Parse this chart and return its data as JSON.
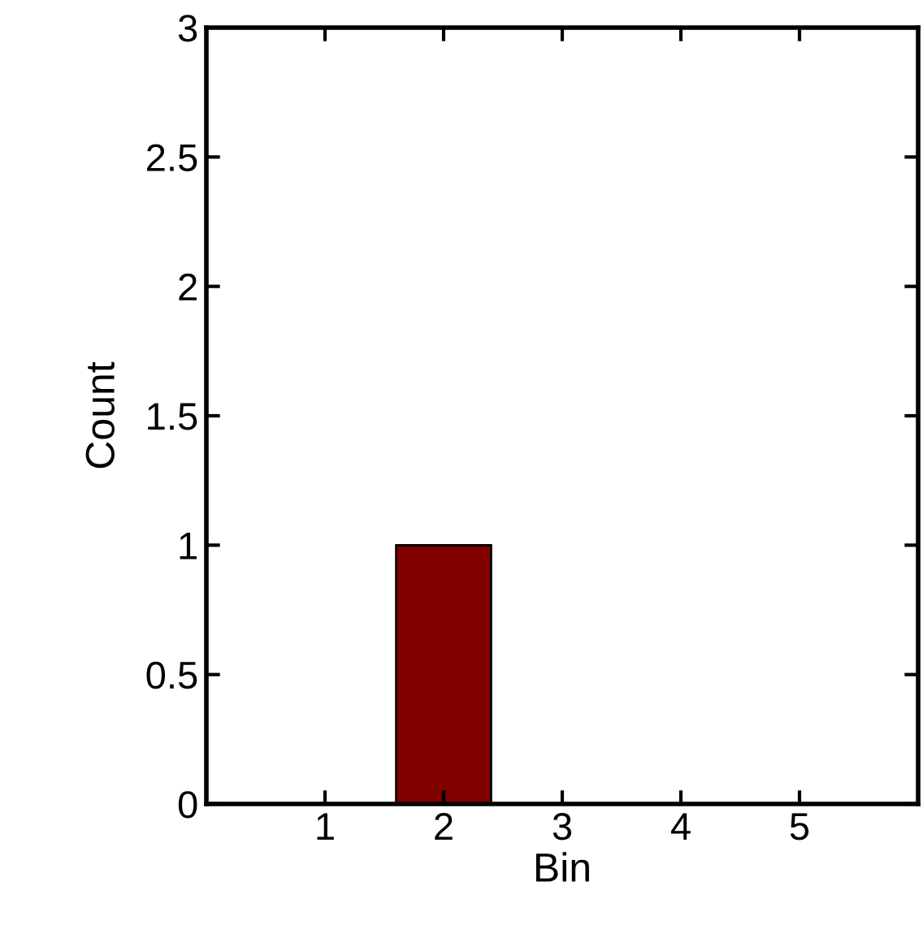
{
  "chart_data": {
    "type": "bar",
    "xlabel": "Bin",
    "ylabel": "Count",
    "x": [
      1,
      2,
      3,
      4,
      5
    ],
    "series": [
      {
        "color": "#800000",
        "values": [
          0,
          1,
          0,
          0,
          0
        ]
      }
    ],
    "xlim": [
      0,
      6
    ],
    "xticks": [
      1,
      2,
      3,
      4,
      5
    ],
    "ylim": [
      0,
      3
    ],
    "yticks": [
      0,
      0.5,
      1,
      1.5,
      2,
      2.5,
      3
    ],
    "grid": false,
    "legend": false
  }
}
